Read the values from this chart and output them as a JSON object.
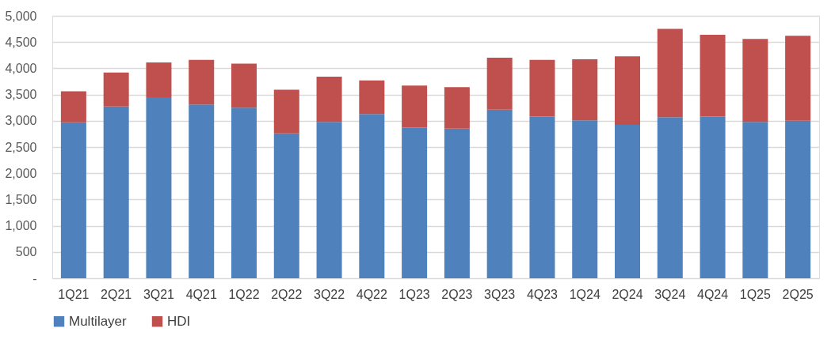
{
  "chart_data": {
    "type": "bar",
    "stacked": true,
    "categories": [
      "1Q21",
      "2Q21",
      "3Q21",
      "4Q21",
      "1Q22",
      "2Q22",
      "3Q22",
      "4Q22",
      "1Q23",
      "2Q23",
      "3Q23",
      "4Q23",
      "1Q24",
      "2Q24",
      "3Q24",
      "4Q24",
      "1Q25",
      "2Q25"
    ],
    "series": [
      {
        "name": "Multilayer",
        "color": "#4f81bd",
        "values": [
          2970,
          3270,
          3450,
          3310,
          3250,
          2760,
          2980,
          3130,
          2870,
          2850,
          3210,
          3080,
          3010,
          2920,
          3070,
          3080,
          2980,
          3000
        ]
      },
      {
        "name": "HDI",
        "color": "#c0504d",
        "values": [
          590,
          650,
          660,
          850,
          840,
          830,
          860,
          640,
          800,
          790,
          990,
          1080,
          1160,
          1310,
          1680,
          1560,
          1580,
          1620
        ]
      }
    ],
    "ylim": [
      0,
      5000
    ],
    "yticks": [
      {
        "value": 0,
        "label": "-"
      },
      {
        "value": 500,
        "label": "500"
      },
      {
        "value": 1000,
        "label": "1,000"
      },
      {
        "value": 1500,
        "label": "1,500"
      },
      {
        "value": 2000,
        "label": "2,000"
      },
      {
        "value": 2500,
        "label": "2,500"
      },
      {
        "value": 3000,
        "label": "3,000"
      },
      {
        "value": 3500,
        "label": "3,500"
      },
      {
        "value": 4000,
        "label": "4,000"
      },
      {
        "value": 4500,
        "label": "4,500"
      },
      {
        "value": 5000,
        "label": "5,000"
      }
    ],
    "grid": "y",
    "legend": "bottom"
  }
}
